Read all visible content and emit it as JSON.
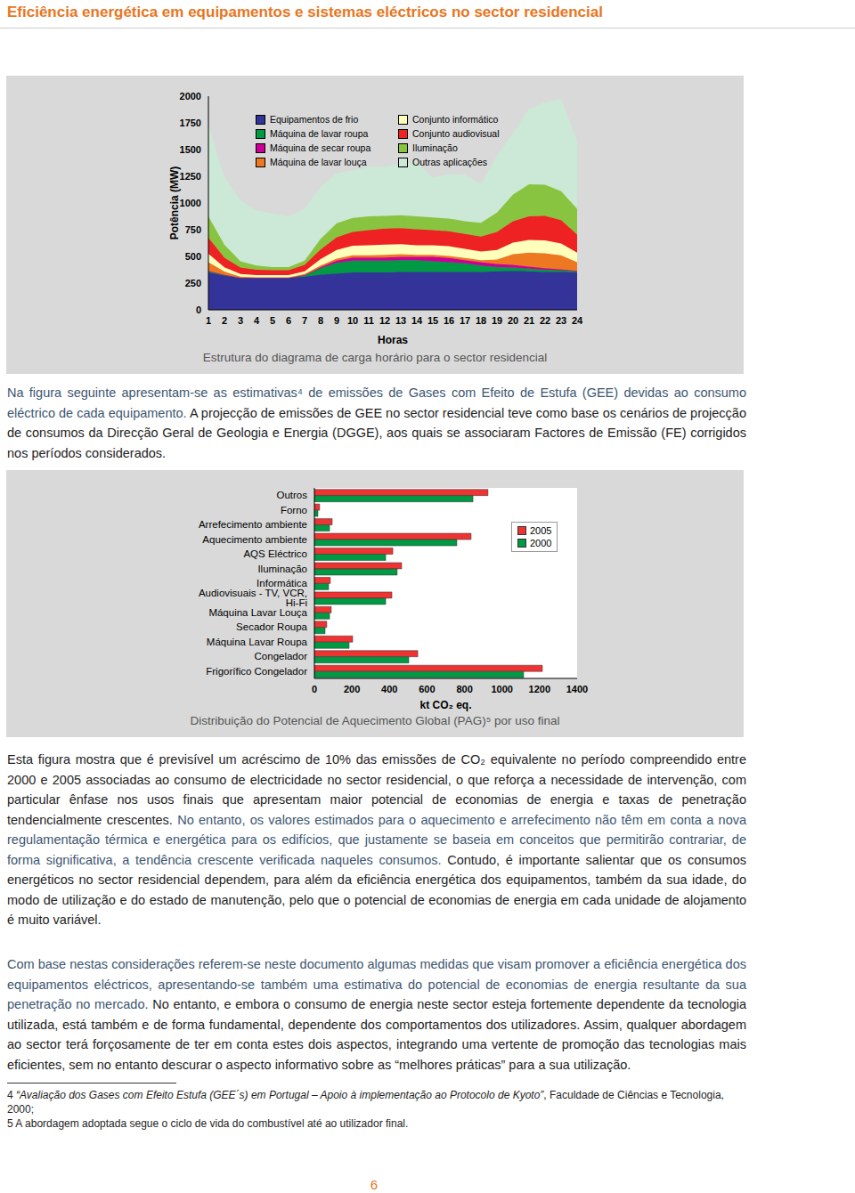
{
  "header": {
    "title": "Eficiência energética em equipamentos e sistemas eléctricos no sector residencial"
  },
  "chart_data": [
    {
      "type": "area",
      "stacked": true,
      "caption": "Estrutura do diagrama de carga horário para o sector residencial",
      "x_label": "Horas",
      "y_label": "Potência (MW)",
      "x": [
        1,
        2,
        3,
        4,
        5,
        6,
        7,
        8,
        9,
        10,
        11,
        12,
        13,
        14,
        15,
        16,
        17,
        18,
        19,
        20,
        21,
        22,
        23,
        24
      ],
      "xlim": [
        1,
        24
      ],
      "xticks": [
        1,
        2,
        3,
        4,
        5,
        6,
        7,
        8,
        9,
        10,
        11,
        12,
        13,
        14,
        15,
        16,
        17,
        18,
        19,
        20,
        21,
        22,
        23,
        24
      ],
      "ylim": [
        0,
        2000
      ],
      "yticks": [
        0,
        250,
        500,
        750,
        1000,
        1250,
        1500,
        1750,
        2000
      ],
      "legend": "upper left",
      "series": [
        {
          "name": "Equipamentos de frio",
          "color": "#333399",
          "values": [
            350,
            320,
            300,
            300,
            300,
            300,
            310,
            330,
            340,
            350,
            350,
            350,
            355,
            355,
            355,
            355,
            355,
            355,
            360,
            365,
            360,
            355,
            355,
            350
          ]
        },
        {
          "name": "Máquina de lavar roupa",
          "color": "#009944",
          "values": [
            10,
            5,
            0,
            0,
            0,
            0,
            10,
            60,
            100,
            110,
            110,
            110,
            110,
            110,
            100,
            90,
            80,
            60,
            40,
            30,
            25,
            20,
            15,
            10
          ]
        },
        {
          "name": "Máquina de secar roupa",
          "color": "#cc0099",
          "values": [
            5,
            3,
            0,
            0,
            0,
            0,
            5,
            10,
            20,
            30,
            30,
            30,
            30,
            30,
            40,
            40,
            30,
            30,
            30,
            25,
            20,
            15,
            10,
            5
          ]
        },
        {
          "name": "Máquina de lavar louça",
          "color": "#ee7722",
          "values": [
            80,
            30,
            10,
            5,
            5,
            5,
            10,
            15,
            20,
            20,
            20,
            25,
            25,
            20,
            20,
            20,
            20,
            20,
            40,
            100,
            130,
            140,
            130,
            80
          ]
        },
        {
          "name": "Conjunto informático",
          "color": "#ffffbb",
          "values": [
            80,
            40,
            25,
            20,
            20,
            20,
            25,
            60,
            80,
            90,
            95,
            95,
            95,
            90,
            90,
            90,
            85,
            80,
            90,
            110,
            120,
            120,
            110,
            90
          ]
        },
        {
          "name": "Conjunto audiovisual",
          "color": "#ee2222",
          "values": [
            150,
            90,
            60,
            50,
            45,
            45,
            60,
            90,
            120,
            130,
            140,
            150,
            150,
            150,
            140,
            140,
            140,
            140,
            170,
            200,
            220,
            230,
            220,
            170
          ]
        },
        {
          "name": "Iluminação",
          "color": "#88c440",
          "values": [
            200,
            120,
            60,
            40,
            30,
            30,
            40,
            100,
            130,
            130,
            130,
            120,
            120,
            120,
            120,
            120,
            120,
            130,
            180,
            250,
            300,
            290,
            270,
            240
          ]
        },
        {
          "name": "Outras aplicações",
          "color": "#cce8d6",
          "values": [
            840,
            625,
            570,
            510,
            500,
            475,
            480,
            485,
            465,
            440,
            460,
            460,
            475,
            505,
            370,
            415,
            430,
            360,
            530,
            570,
            705,
            770,
            860,
            625
          ]
        }
      ]
    },
    {
      "type": "bar",
      "orientation": "horizontal",
      "caption": "Distribuição do Potencial de Aquecimento Global (PAG)⁵ por uso final",
      "x_label": "kt CO₂ eq.",
      "categories": [
        "Outros",
        "Forno",
        "Arrefecimento ambiente",
        "Aquecimento ambiente",
        "AQS Eléctrico",
        "Iluminação",
        "Informática",
        "Audiovisuais - TV, VCR, Hi-Fi",
        "Máquina Lavar Louça",
        "Secador Roupa",
        "Máquina Lavar Roupa",
        "Congelador",
        "Frigorífico Congelador"
      ],
      "xlim": [
        0,
        1400
      ],
      "xticks": [
        0,
        200,
        400,
        600,
        800,
        1000,
        1200,
        1400
      ],
      "legend": "upper right",
      "series": [
        {
          "name": "2005",
          "color": "#ee3333",
          "values": [
            925,
            28,
            95,
            835,
            418,
            465,
            85,
            413,
            90,
            66,
            204,
            551,
            1215
          ]
        },
        {
          "name": "2000",
          "color": "#009944",
          "values": [
            845,
            19,
            81,
            759,
            380,
            441,
            76,
            380,
            81,
            57,
            185,
            503,
            1115
          ]
        }
      ]
    }
  ],
  "paragraphs": [
    [
      "Na figura seguinte apresentam-se as estimativas⁴ de emissões de Gases com Efeito de Estufa (GEE) devidas ao consumo eléctrico de cada equipamento.",
      "A projecção de emissões de GEE no sector residencial teve como base os cenários de projecção de consumos da Direcção Geral de Geologia e Energia (DGGE), aos quais se associaram Factores de Emissão (FE) corrigidos nos períodos considerados."
    ],
    [
      "Esta figura mostra que é previsível um acréscimo de 10% das emissões de CO₂ equivalente no período compreendido entre 2000 e 2005 associadas ao consumo de electricidade no sector residencial, o que reforça a necessidade de intervenção, com particular ênfase nos usos finais que apresentam maior potencial de economias de energia e taxas de penetração tendencialmente crescentes.",
      "No entanto, os valores estimados para o aquecimento e arrefecimento não têm em conta a nova regulamentação térmica e energética para os edifícios, que justamente se baseia em conceitos que permitirão contrariar, de forma significativa, a tendência crescente verificada naqueles consumos.",
      "Contudo, é importante salientar que os consumos energéticos no sector residencial dependem, para além da eficiência energética dos equipamentos, também da sua idade, do modo de utilização e do estado de manutenção, pelo que o potencial de economias de energia em cada unidade de alojamento é muito variável."
    ],
    [
      "Com base nestas considerações referem-se neste documento algumas medidas que visam promover a eficiência energética dos equipamentos eléctricos, apresentando-se também uma estimativa do potencial de economias de energia resultante da sua penetração no mercado.",
      "No entanto, e embora o consumo de energia neste sector esteja fortemente dependente da tecnologia utilizada, está também e de forma fundamental, dependente dos comportamentos dos utilizadores. Assim, qualquer abordagem ao sector terá forçosamente de ter em conta estes dois aspectos, integrando uma vertente de promoção das tecnologias mais eficientes, sem no entanto descurar o aspecto informativo sobre as “melhores práticas” para a sua utilização."
    ]
  ],
  "footnotes": [
    {
      "number": 4,
      "italic": "“Avaliação dos Gases com Efeito Estufa (GEE´s) em Portugal – Apoio à implementação ao Protocolo de Kyoto”",
      "text": ", Faculdade de Ciências e Tecnologia, 2000;"
    },
    {
      "number": 5,
      "text": "A abordagem adoptada segue o ciclo de vida do combustível até ao utilizador final."
    }
  ],
  "page_number": 6
}
